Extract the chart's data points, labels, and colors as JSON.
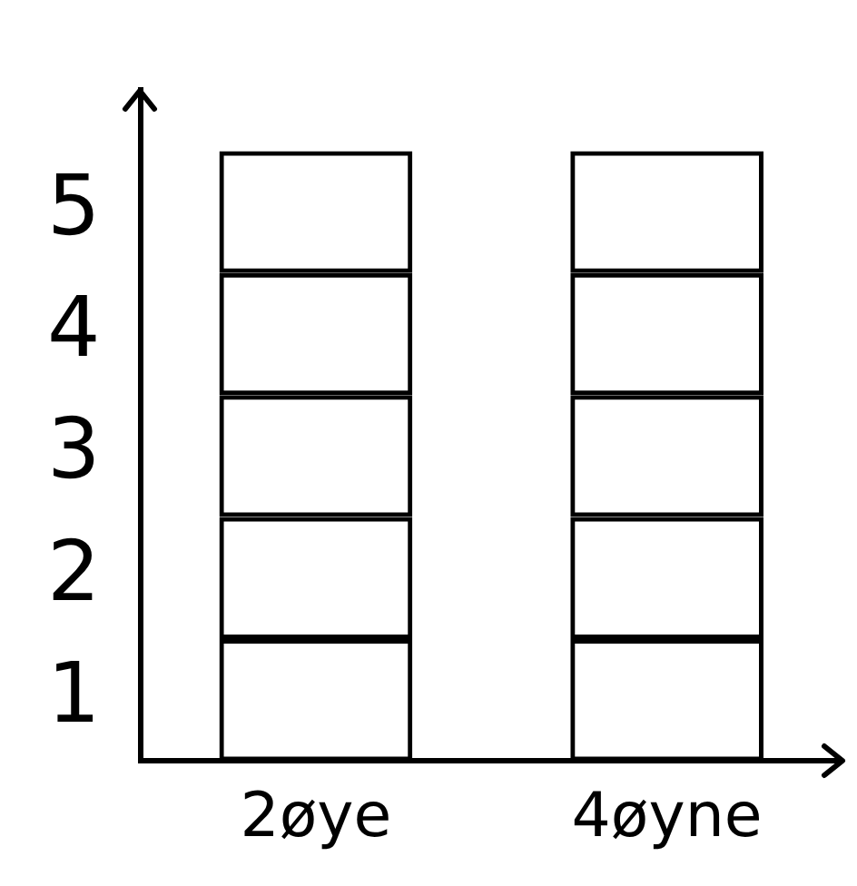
{
  "chart_data": {
    "type": "bar",
    "stacked": true,
    "categories": [
      "2øye",
      "4øyne"
    ],
    "series": [
      {
        "color": "#000000",
        "values": [
          1,
          1
        ]
      },
      {
        "color": "#000000",
        "values": [
          1,
          1
        ]
      },
      {
        "color": "#000000",
        "values": [
          1,
          1
        ]
      },
      {
        "color": "#000000",
        "values": [
          1,
          1
        ]
      },
      {
        "color": "#000000",
        "values": [
          1,
          1
        ]
      }
    ],
    "ylim": [
      0,
      5.5
    ],
    "yticks": [
      {
        "value": 0.5,
        "label": "1"
      },
      {
        "value": 1.5,
        "label": "2"
      },
      {
        "value": 2.5,
        "label": "3"
      },
      {
        "value": 3.5,
        "label": "4"
      },
      {
        "value": 4.5,
        "label": "5"
      }
    ],
    "grid": false,
    "legend": false
  }
}
